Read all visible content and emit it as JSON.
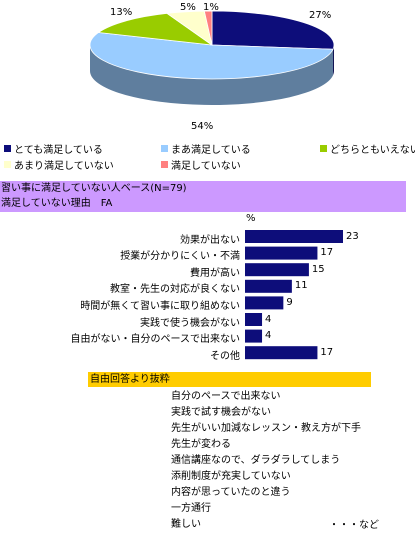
{
  "chart_data": [
    {
      "type": "pie",
      "slices": [
        {
          "label": "とても満足している",
          "value": 27,
          "value_label": "27%",
          "color": "#0d0d7a"
        },
        {
          "label": "まあ満足している",
          "value": 54,
          "value_label": "54%",
          "color": "#99ccff"
        },
        {
          "label": "どちらともいえない",
          "value": 13,
          "value_label": "13%",
          "color": "#99cc00"
        },
        {
          "label": "あまり満足していない",
          "value": 5,
          "value_label": "5%",
          "color": "#ffffcc"
        },
        {
          "label": "満足していない",
          "value": 1,
          "value_label": "1%",
          "color": "#ff8080"
        }
      ]
    },
    {
      "type": "bar",
      "orientation": "horizontal",
      "unit": "%",
      "color": "#0d0d7a",
      "xlim": [
        0,
        23
      ],
      "categories": [
        "効果が出ない",
        "授業が分かりにくい・不満",
        "費用が高い",
        "教室・先生の対応が良くない",
        "時間が無くて習い事に取り組めない",
        "実践で使う機会がない",
        "自由がない・自分のペースで出来ない",
        "その他"
      ],
      "values": [
        23,
        17,
        15,
        11,
        9,
        4,
        4,
        17
      ]
    }
  ],
  "section": {
    "line1": "習い事に満足していない人ベース(N=79)",
    "line2": "満足していない理由　FA"
  },
  "free_answers": {
    "header": "自由回答より抜粋",
    "items": [
      "自分のペースで出来ない",
      "実践で試す機会がない",
      "先生がいい加減なレッスン・教え方が下手",
      "先生が変わる",
      "通信講座なので、ダラダラしてしまう",
      "添削制度が充実していない",
      "内容が思っていたのと違う",
      "一方通行",
      "難しい"
    ],
    "etc": "・・・など"
  }
}
